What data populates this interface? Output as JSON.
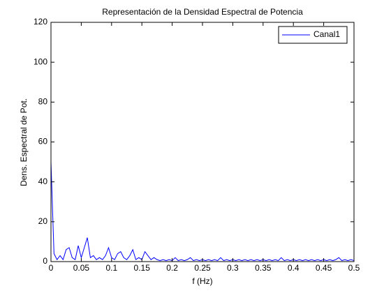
{
  "chart_data": {
    "type": "line",
    "title": "Representación de la Densidad Espectral de Potencia",
    "xlabel": "f (Hz)",
    "ylabel": "Dens. Espectral de Pot.",
    "x": [
      0,
      0.005,
      0.01,
      0.015,
      0.02,
      0.025,
      0.03,
      0.035,
      0.04,
      0.045,
      0.05,
      0.055,
      0.06,
      0.065,
      0.07,
      0.075,
      0.08,
      0.085,
      0.09,
      0.095,
      0.1,
      0.105,
      0.11,
      0.115,
      0.12,
      0.125,
      0.13,
      0.135,
      0.14,
      0.145,
      0.15,
      0.155,
      0.16,
      0.165,
      0.17,
      0.175,
      0.18,
      0.185,
      0.19,
      0.195,
      0.2,
      0.205,
      0.21,
      0.215,
      0.22,
      0.225,
      0.23,
      0.235,
      0.24,
      0.245,
      0.25,
      0.255,
      0.26,
      0.265,
      0.27,
      0.275,
      0.28,
      0.285,
      0.29,
      0.295,
      0.3,
      0.305,
      0.31,
      0.315,
      0.32,
      0.325,
      0.33,
      0.335,
      0.34,
      0.345,
      0.35,
      0.355,
      0.36,
      0.365,
      0.37,
      0.375,
      0.38,
      0.385,
      0.39,
      0.395,
      0.4,
      0.405,
      0.41,
      0.415,
      0.42,
      0.425,
      0.43,
      0.435,
      0.44,
      0.445,
      0.45,
      0.455,
      0.46,
      0.465,
      0.47,
      0.475,
      0.48,
      0.485,
      0.49,
      0.495,
      0.5
    ],
    "series": [
      {
        "name": "Canal1",
        "color": "#0000ff",
        "values": [
          50,
          4,
          1,
          3,
          1,
          6,
          7,
          2,
          1,
          8,
          2,
          7,
          12,
          2,
          3,
          1,
          2,
          1,
          3,
          7,
          2,
          1,
          4,
          5,
          2,
          1,
          3,
          6,
          1,
          2,
          1,
          5,
          3,
          1,
          2,
          1,
          0.5,
          1,
          0.5,
          1,
          0.5,
          2,
          0.5,
          1,
          0.5,
          1,
          2,
          0.5,
          1,
          0.5,
          1,
          0.5,
          1,
          0.5,
          1,
          0.5,
          2,
          0.5,
          1,
          0.5,
          1,
          0.5,
          1,
          0.5,
          1,
          0.5,
          1,
          0.5,
          1,
          0.5,
          1,
          0.5,
          1,
          0.5,
          1,
          0.5,
          2,
          0.5,
          1,
          0.5,
          1,
          0.5,
          1,
          0.5,
          1,
          0.5,
          1,
          0.5,
          1,
          0.5,
          1,
          0.5,
          1,
          0.5,
          1,
          2,
          0.5,
          1,
          0.5,
          1,
          0.5
        ]
      }
    ],
    "xlim": [
      0,
      0.5
    ],
    "xticks": [
      0,
      0.05,
      0.1,
      0.15,
      0.2,
      0.25,
      0.3,
      0.35,
      0.4,
      0.45,
      0.5
    ],
    "ylim": [
      0,
      120
    ],
    "yticks": [
      0,
      20,
      40,
      60,
      80,
      100,
      120
    ],
    "grid": false,
    "legend": "northeast"
  }
}
